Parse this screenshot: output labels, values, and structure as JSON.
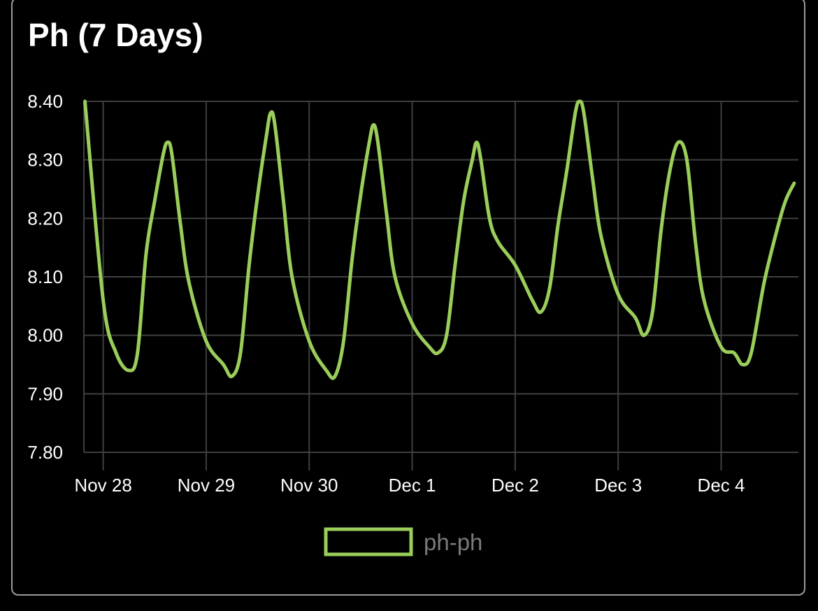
{
  "card": {
    "title": "Ph (7 Days)"
  },
  "colors": {
    "background": "#000000",
    "series": "#9acd5a",
    "grid": "#3f3f3f",
    "card_border": "#9a9a9a",
    "legend_text": "#7a7a7a"
  },
  "chart_data": {
    "type": "line",
    "title": "Ph (7 Days)",
    "xlabel": "",
    "ylabel": "",
    "x_ticks": [
      "Nov 28",
      "Nov 29",
      "Nov 30",
      "Dec 1",
      "Dec 2",
      "Dec 3",
      "Dec 4"
    ],
    "xlim": [
      "Nov 27 19:30",
      "Dec 4 18:00"
    ],
    "ylim": [
      7.8,
      8.4
    ],
    "y_ticks": [
      8.4,
      8.3,
      8.2,
      8.1,
      8.0,
      7.9,
      7.8
    ],
    "y_tick_labels": [
      "8.40",
      "8.30",
      "8.20",
      "8.10",
      "8.00",
      "7.90",
      "7.80"
    ],
    "grid": true,
    "legend_position": "bottom-center",
    "series": [
      {
        "name": "ph-ph",
        "color": "#9acd5a",
        "points": [
          [
            "Nov 27 19:45",
            8.4
          ],
          [
            "Nov 28 00:00",
            8.06
          ],
          [
            "Nov 28 03:00",
            7.97
          ],
          [
            "Nov 28 06:00",
            7.94
          ],
          [
            "Nov 28 08:00",
            7.97
          ],
          [
            "Nov 28 10:00",
            8.14
          ],
          [
            "Nov 28 12:00",
            8.23
          ],
          [
            "Nov 28 14:00",
            8.31
          ],
          [
            "Nov 28 15:00",
            8.33
          ],
          [
            "Nov 28 16:00",
            8.31
          ],
          [
            "Nov 28 18:00",
            8.19
          ],
          [
            "Nov 28 20:00",
            8.09
          ],
          [
            "Nov 29 00:00",
            7.99
          ],
          [
            "Nov 29 04:00",
            7.95
          ],
          [
            "Nov 29 06:00",
            7.93
          ],
          [
            "Nov 29 08:00",
            7.97
          ],
          [
            "Nov 29 10:00",
            8.12
          ],
          [
            "Nov 29 12:00",
            8.24
          ],
          [
            "Nov 29 14:00",
            8.34
          ],
          [
            "Nov 29 15:00",
            8.38
          ],
          [
            "Nov 29 16:00",
            8.36
          ],
          [
            "Nov 29 18:00",
            8.23
          ],
          [
            "Nov 29 20:00",
            8.1
          ],
          [
            "Nov 30 00:00",
            7.99
          ],
          [
            "Nov 30 04:00",
            7.94
          ],
          [
            "Nov 30 06:00",
            7.93
          ],
          [
            "Nov 30 08:00",
            7.99
          ],
          [
            "Nov 30 10:00",
            8.13
          ],
          [
            "Nov 30 12:00",
            8.24
          ],
          [
            "Nov 30 14:00",
            8.33
          ],
          [
            "Nov 30 15:00",
            8.36
          ],
          [
            "Nov 30 16:00",
            8.33
          ],
          [
            "Nov 30 18:00",
            8.21
          ],
          [
            "Nov 30 20:00",
            8.1
          ],
          [
            "Dec 1 00:00",
            8.02
          ],
          [
            "Dec 1 04:00",
            7.98
          ],
          [
            "Dec 1 06:00",
            7.97
          ],
          [
            "Dec 1 08:00",
            8.0
          ],
          [
            "Dec 1 10:00",
            8.12
          ],
          [
            "Dec 1 12:00",
            8.23
          ],
          [
            "Dec 1 14:00",
            8.3
          ],
          [
            "Dec 1 15:00",
            8.33
          ],
          [
            "Dec 1 16:00",
            8.3
          ],
          [
            "Dec 1 18:00",
            8.2
          ],
          [
            "Dec 1 20:00",
            8.16
          ],
          [
            "Dec 2 00:00",
            8.12
          ],
          [
            "Dec 2 04:00",
            8.06
          ],
          [
            "Dec 2 06:00",
            8.04
          ],
          [
            "Dec 2 08:00",
            8.08
          ],
          [
            "Dec 2 10:00",
            8.19
          ],
          [
            "Dec 2 12:00",
            8.28
          ],
          [
            "Dec 2 14:00",
            8.38
          ],
          [
            "Dec 2 15:00",
            8.4
          ],
          [
            "Dec 2 16:00",
            8.38
          ],
          [
            "Dec 2 18:00",
            8.27
          ],
          [
            "Dec 2 20:00",
            8.17
          ],
          [
            "Dec 3 00:00",
            8.07
          ],
          [
            "Dec 3 04:00",
            8.03
          ],
          [
            "Dec 3 06:00",
            8.0
          ],
          [
            "Dec 3 08:00",
            8.04
          ],
          [
            "Dec 3 10:00",
            8.18
          ],
          [
            "Dec 3 12:00",
            8.28
          ],
          [
            "Dec 3 14:00",
            8.33
          ],
          [
            "Dec 3 16:00",
            8.3
          ],
          [
            "Dec 3 18:00",
            8.16
          ],
          [
            "Dec 3 20:00",
            8.06
          ],
          [
            "Dec 4 00:00",
            7.98
          ],
          [
            "Dec 4 03:00",
            7.97
          ],
          [
            "Dec 4 05:00",
            7.95
          ],
          [
            "Dec 4 07:00",
            7.97
          ],
          [
            "Dec 4 10:00",
            8.09
          ],
          [
            "Dec 4 13:00",
            8.18
          ],
          [
            "Dec 4 15:00",
            8.23
          ],
          [
            "Dec 4 17:00",
            8.26
          ]
        ]
      }
    ]
  }
}
